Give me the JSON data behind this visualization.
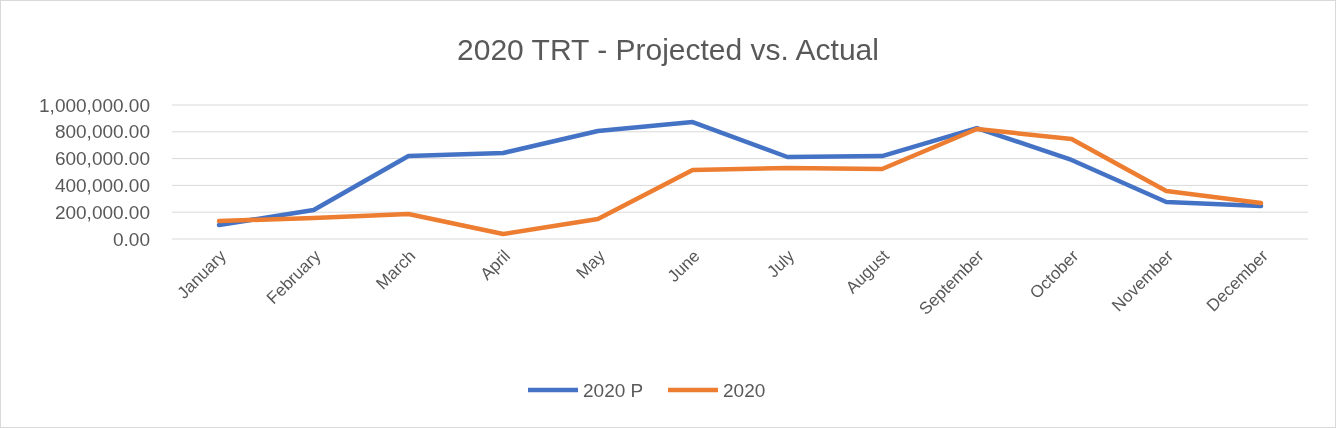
{
  "chart_data": {
    "type": "line",
    "title": "2020 TRT - Projected vs. Actual",
    "categories": [
      "January",
      "February",
      "March",
      "April",
      "May",
      "June",
      "July",
      "August",
      "September",
      "October",
      "November",
      "December"
    ],
    "series": [
      {
        "name": "2020 P",
        "color": "#4472c4",
        "values": [
          105000,
          216000,
          619000,
          642000,
          806000,
          873000,
          612000,
          619000,
          828000,
          590000,
          276000,
          246000
        ]
      },
      {
        "name": "2020",
        "color": "#ed7d31",
        "values": [
          134000,
          157000,
          187000,
          37000,
          149000,
          515000,
          530000,
          522000,
          821000,
          746000,
          358000,
          269000
        ]
      }
    ],
    "ylim": [
      0,
      1000000
    ],
    "yticks": [
      {
        "value": 0,
        "label": "0.00"
      },
      {
        "value": 200000,
        "label": "200,000.00"
      },
      {
        "value": 400000,
        "label": "400,000.00"
      },
      {
        "value": 600000,
        "label": "600,000.00"
      },
      {
        "value": 800000,
        "label": "800,000.00"
      },
      {
        "value": 1000000,
        "label": "1,000,000.00"
      }
    ],
    "grid": "y",
    "legend": "bottom",
    "marker": "none",
    "line_style": "solid"
  }
}
